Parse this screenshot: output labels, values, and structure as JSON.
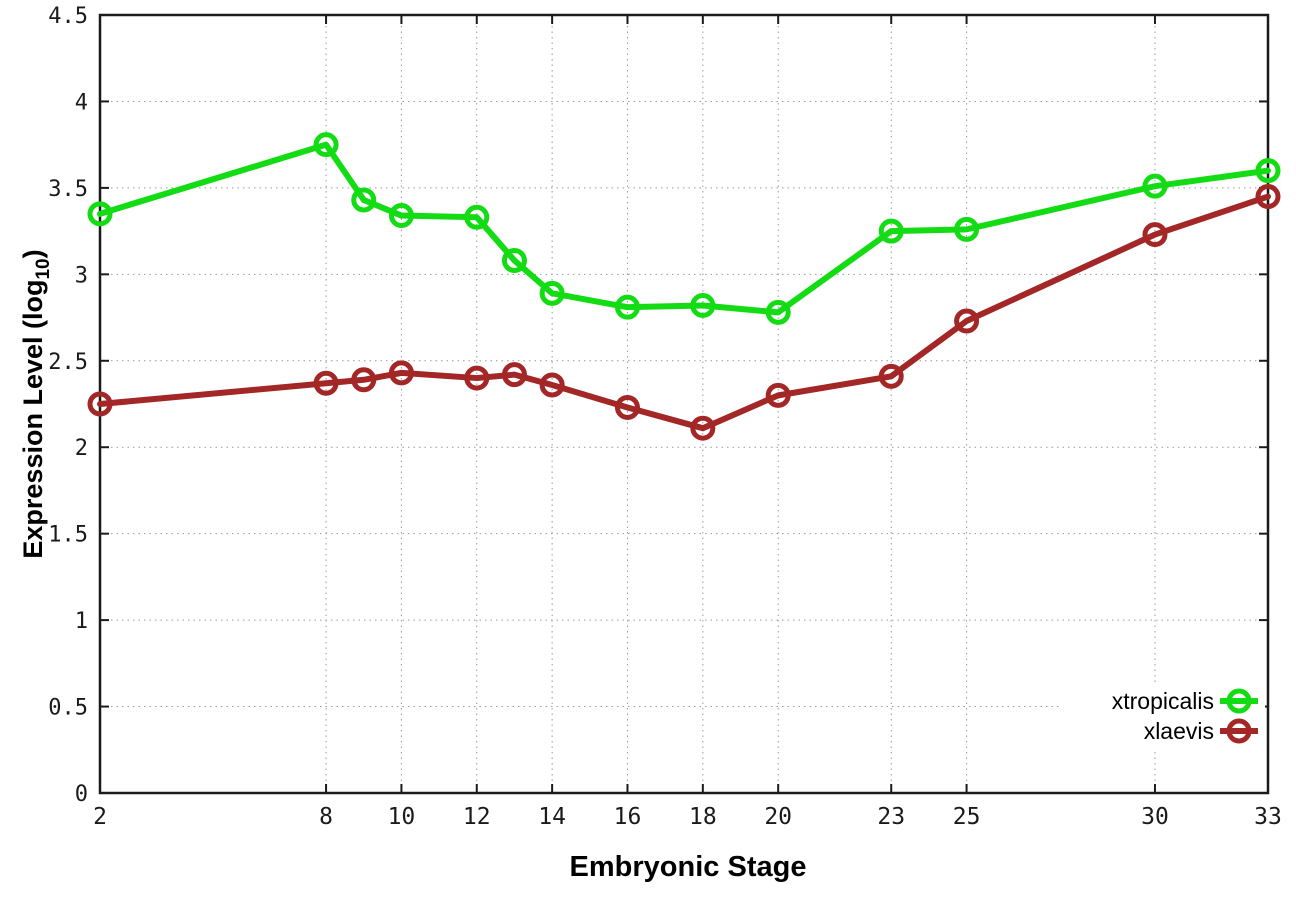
{
  "figure": {
    "xlabel": "Embryonic Stage",
    "ylabel": {
      "main": "Expression Level (log",
      "sub": "10",
      "end": ")"
    }
  },
  "chart_data": {
    "type": "line",
    "title": "",
    "xlabel": "Embryonic Stage",
    "ylabel": "Expression Level (log10)",
    "xlim": [
      2,
      33
    ],
    "ylim": [
      0,
      4.5
    ],
    "xticks": [
      2,
      8,
      10,
      12,
      14,
      16,
      18,
      20,
      23,
      25,
      30,
      33
    ],
    "yticks": [
      0,
      0.5,
      1,
      1.5,
      2,
      2.5,
      3,
      3.5,
      4,
      4.5
    ],
    "grid": true,
    "legend_position": "inside-bottom-right",
    "x": [
      2,
      8,
      9,
      10,
      12,
      13,
      14,
      16,
      18,
      20,
      23,
      25,
      30,
      33
    ],
    "series": [
      {
        "name": "xtropicalis",
        "color": "#14dc14",
        "marker": "open-circle",
        "values": [
          3.35,
          3.75,
          3.43,
          3.34,
          3.33,
          3.08,
          2.89,
          2.81,
          2.82,
          2.78,
          3.25,
          3.26,
          3.51,
          3.6
        ]
      },
      {
        "name": "xlaevis",
        "color": "#a42727",
        "marker": "open-circle",
        "values": [
          2.25,
          2.37,
          2.39,
          2.43,
          2.4,
          2.42,
          2.36,
          2.23,
          2.11,
          2.3,
          2.41,
          2.73,
          3.23,
          3.45
        ]
      }
    ]
  },
  "colors": {
    "grid": "#9a9a9a",
    "axis": "#1a1a1a",
    "background": "#ffffff"
  }
}
